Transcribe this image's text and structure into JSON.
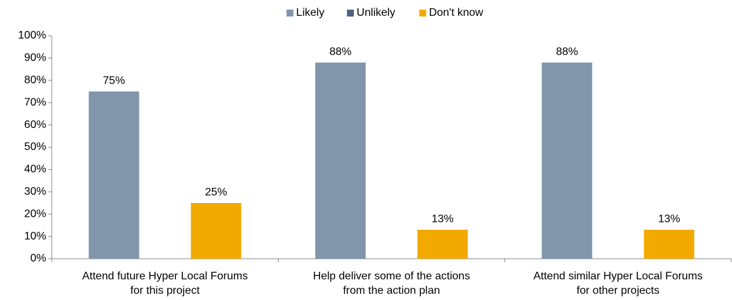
{
  "chart_data": {
    "type": "bar",
    "categories": [
      [
        "Attend future Hyper Local Forums",
        "for this project"
      ],
      [
        "Help deliver some of the actions",
        "from the action plan"
      ],
      [
        "Attend similar Hyper Local Forums",
        "for other projects"
      ]
    ],
    "series": [
      {
        "name": "Likely",
        "color": "#8196aa",
        "values": [
          75,
          88,
          88
        ],
        "value_labels": [
          "75%",
          "88%",
          "88%"
        ]
      },
      {
        "name": "Unlikely",
        "color": "#4e6380",
        "values": [
          null,
          null,
          null
        ]
      },
      {
        "name": "Don't know",
        "color": "#f2aa00",
        "values": [
          25,
          13,
          13
        ],
        "value_labels": [
          "25%",
          "13%",
          "13%"
        ]
      }
    ],
    "ylim": [
      0,
      100
    ],
    "yticks": [
      {
        "value": 0,
        "label": "0%"
      },
      {
        "value": 10,
        "label": "10%"
      },
      {
        "value": 20,
        "label": "20%"
      },
      {
        "value": 30,
        "label": "30%"
      },
      {
        "value": 40,
        "label": "40%"
      },
      {
        "value": 50,
        "label": "50%"
      },
      {
        "value": 60,
        "label": "60%"
      },
      {
        "value": 70,
        "label": "70%"
      },
      {
        "value": 80,
        "label": "80%"
      },
      {
        "value": 90,
        "label": "90%"
      },
      {
        "value": 100,
        "label": "100%"
      }
    ],
    "legend": "top",
    "grid": false
  }
}
